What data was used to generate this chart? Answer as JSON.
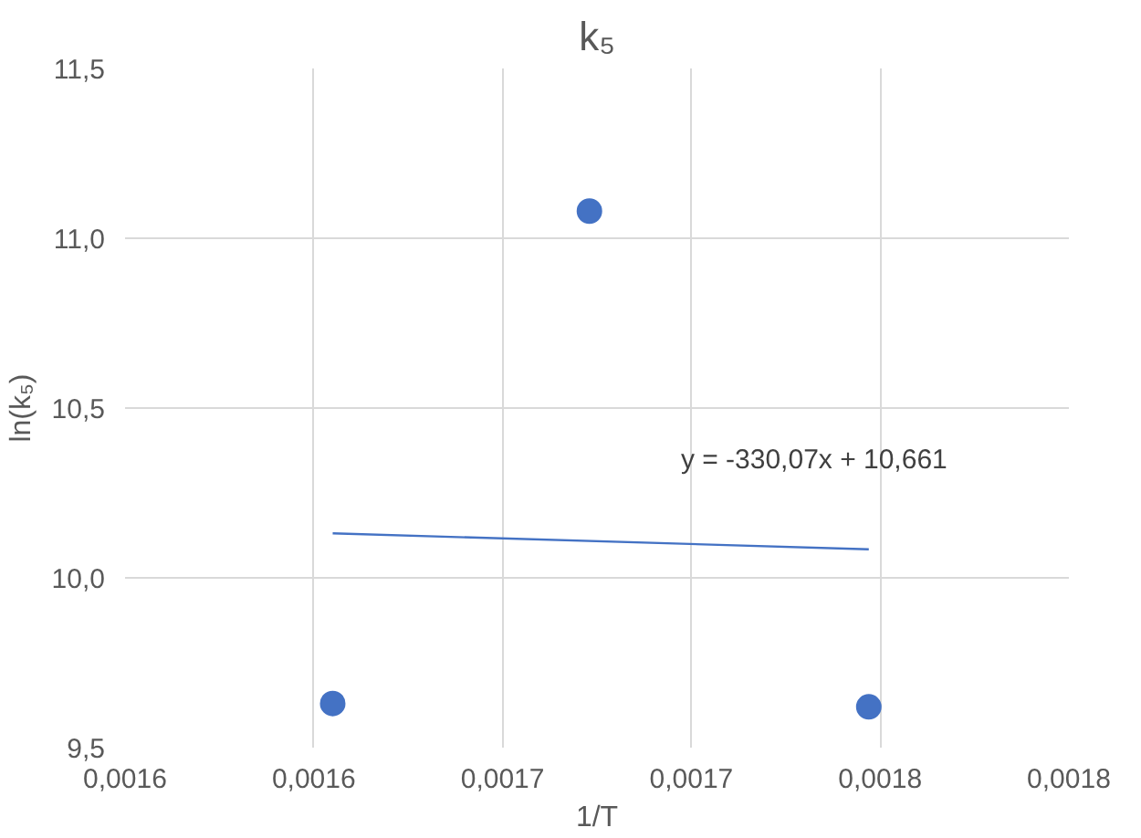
{
  "chart_data": {
    "type": "scatter",
    "title": "k₅",
    "xlabel": "1/T",
    "ylabel": "ln(k₅)",
    "series": [
      {
        "color": "#4472c4",
        "marker": "circle",
        "x": [
          0.001605,
          0.001673,
          0.001747
        ],
        "values": [
          9.63,
          11.08,
          9.62
        ]
      },
      {
        "type": "line",
        "color": "#4472c4",
        "line_style": "solid",
        "x": [
          0.001605,
          0.001747
        ],
        "values": [
          10.131,
          10.084
        ]
      }
    ],
    "xlim": [
      0.00155,
      0.0018
    ],
    "ylim": [
      9.5,
      11.5
    ],
    "xticks": [
      {
        "value": 0.00155,
        "label": "0,0016"
      },
      {
        "value": 0.0016,
        "label": "0,0016"
      },
      {
        "value": 0.00165,
        "label": "0,0017"
      },
      {
        "value": 0.0017,
        "label": "0,0017"
      },
      {
        "value": 0.00175,
        "label": "0,0018"
      },
      {
        "value": 0.0018,
        "label": "0,0018"
      }
    ],
    "yticks": [
      {
        "value": 9.5,
        "label": "9,5"
      },
      {
        "value": 10.0,
        "label": "10,0"
      },
      {
        "value": 10.5,
        "label": "10,5"
      },
      {
        "value": 11.0,
        "label": "11,0"
      },
      {
        "value": 11.5,
        "label": "11,5"
      }
    ],
    "annotations": [
      "y = -330,07x + 10,661"
    ],
    "grid": true
  }
}
